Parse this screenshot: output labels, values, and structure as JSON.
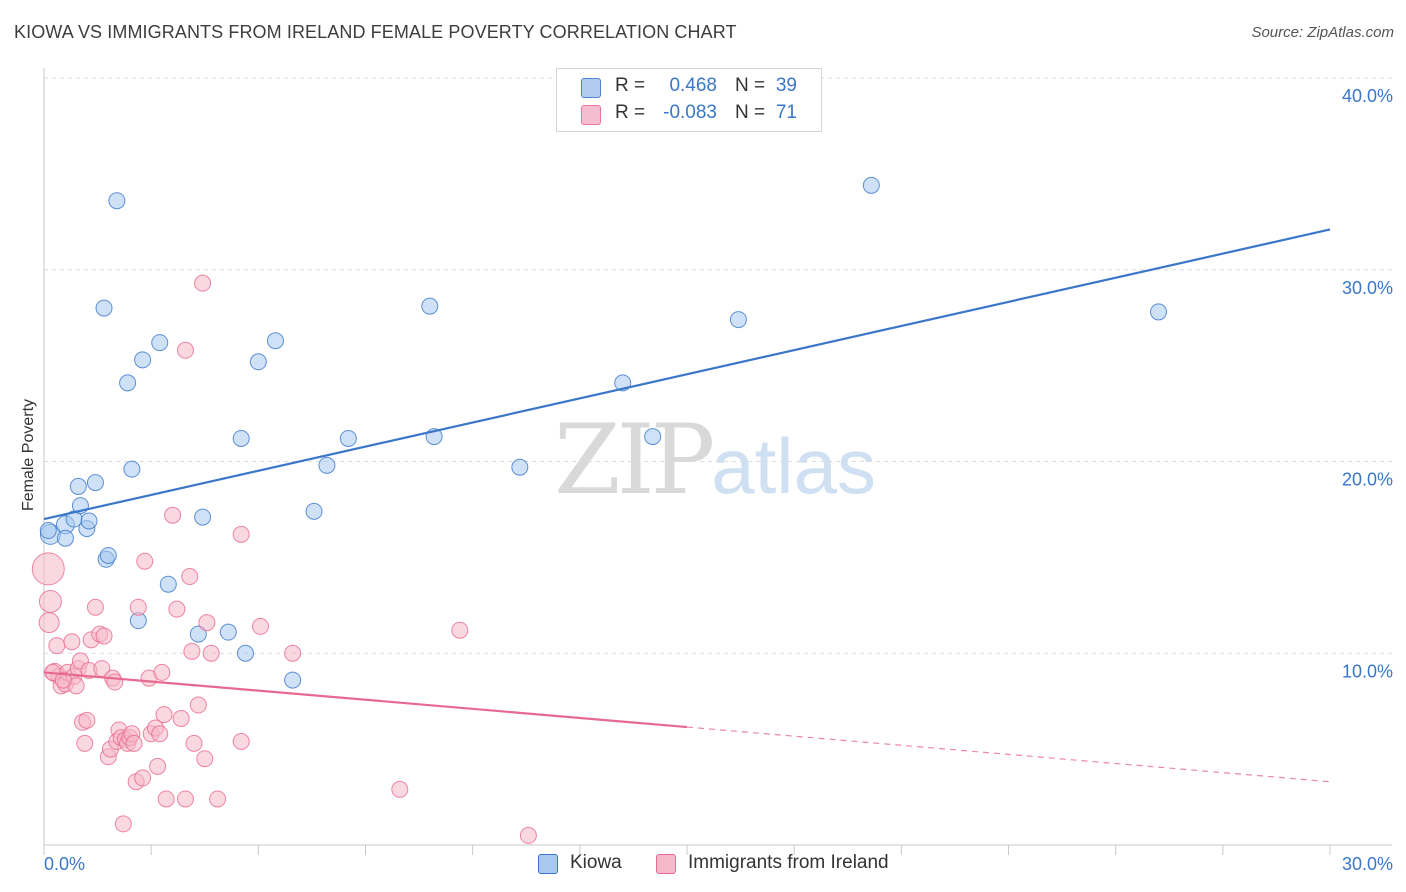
{
  "title": "KIOWA VS IMMIGRANTS FROM IRELAND FEMALE POVERTY CORRELATION CHART",
  "source": "Source: ZipAtlas.com",
  "watermark": {
    "part1": "ZIP",
    "part2": "atlas"
  },
  "legend": {
    "rows": [
      {
        "r_label": "R =",
        "r_value": "0.468",
        "n_label": "N =",
        "n_value": "39",
        "color": "#a8c8f0"
      },
      {
        "r_label": "R =",
        "r_value": "-0.083",
        "n_label": "N =",
        "n_value": "71",
        "color": "#f5b8cb"
      }
    ]
  },
  "bottom_legend": [
    {
      "label": "Kiowa",
      "color": "#a8c8f0"
    },
    {
      "label": "Immigrants from Ireland",
      "color": "#f5b8cb"
    }
  ],
  "chart_data": {
    "type": "scatter",
    "title": "KIOWA VS IMMIGRANTS FROM IRELAND FEMALE POVERTY CORRELATION CHART",
    "xlabel": "",
    "ylabel": "Female Poverty",
    "xlim": [
      0,
      30
    ],
    "ylim": [
      0,
      40
    ],
    "x_tick_labels": [
      "0.0%",
      "30.0%"
    ],
    "y_ticks": [
      10,
      20,
      30,
      40
    ],
    "y_tick_labels": [
      "10.0%",
      "20.0%",
      "30.0%",
      "40.0%"
    ],
    "grid": true,
    "series": [
      {
        "name": "Kiowa",
        "color": "#3a77c9",
        "fill": "#a8c8f0",
        "r": 0.468,
        "n": 39,
        "trend": {
          "x": [
            0,
            30
          ],
          "y": [
            17.0,
            32.1
          ],
          "dashed_from": null
        },
        "points": [
          [
            0.15,
            16.2,
            10
          ],
          [
            0.5,
            16.7,
            9
          ],
          [
            0.5,
            16.0,
            8
          ],
          [
            0.7,
            17.0,
            8
          ],
          [
            0.8,
            18.7,
            8
          ],
          [
            0.85,
            17.7,
            8
          ],
          [
            1.0,
            16.5,
            8
          ],
          [
            1.05,
            16.9,
            8
          ],
          [
            1.2,
            18.9,
            8
          ],
          [
            1.45,
            14.9,
            8
          ],
          [
            1.5,
            15.1,
            8
          ],
          [
            1.4,
            28.0,
            8
          ],
          [
            1.7,
            33.6,
            8
          ],
          [
            1.95,
            24.1,
            8
          ],
          [
            2.05,
            19.6,
            8
          ],
          [
            2.2,
            11.7,
            8
          ],
          [
            2.3,
            25.3,
            8
          ],
          [
            2.7,
            26.2,
            8
          ],
          [
            2.9,
            13.6,
            8
          ],
          [
            3.6,
            11.0,
            8
          ],
          [
            3.7,
            17.1,
            8
          ],
          [
            4.3,
            11.1,
            8
          ],
          [
            4.6,
            21.2,
            8
          ],
          [
            4.7,
            10.0,
            8
          ],
          [
            5.0,
            25.2,
            8
          ],
          [
            5.4,
            26.3,
            8
          ],
          [
            5.8,
            8.6,
            8
          ],
          [
            6.3,
            17.4,
            8
          ],
          [
            6.6,
            19.8,
            8
          ],
          [
            7.1,
            21.2,
            8
          ],
          [
            9.0,
            28.1,
            8
          ],
          [
            9.1,
            21.3,
            8
          ],
          [
            11.1,
            19.7,
            8
          ],
          [
            13.5,
            24.1,
            8
          ],
          [
            14.2,
            21.3,
            8
          ],
          [
            16.2,
            27.4,
            8
          ],
          [
            19.3,
            34.4,
            8
          ],
          [
            26.0,
            27.8,
            8
          ],
          [
            0.1,
            16.4,
            8
          ]
        ]
      },
      {
        "name": "Immigrants from Ireland",
        "color": "#e8698f",
        "fill": "#f5b8cb",
        "r": -0.083,
        "n": 71,
        "trend": {
          "x": [
            0,
            30
          ],
          "y": [
            9.0,
            3.3
          ],
          "dashed_from": 15
        },
        "points": [
          [
            0.1,
            14.4,
            16
          ],
          [
            0.15,
            12.7,
            11
          ],
          [
            0.12,
            11.6,
            10
          ],
          [
            0.25,
            9.0,
            9
          ],
          [
            0.3,
            10.4,
            8
          ],
          [
            0.35,
            8.8,
            8
          ],
          [
            0.4,
            8.3,
            8
          ],
          [
            0.5,
            8.4,
            8
          ],
          [
            0.55,
            9.0,
            8
          ],
          [
            0.65,
            10.6,
            8
          ],
          [
            0.7,
            8.8,
            8
          ],
          [
            0.75,
            8.3,
            8
          ],
          [
            0.8,
            9.2,
            8
          ],
          [
            0.85,
            9.6,
            8
          ],
          [
            0.9,
            6.4,
            8
          ],
          [
            0.95,
            5.3,
            8
          ],
          [
            1.0,
            6.5,
            8
          ],
          [
            1.05,
            9.1,
            8
          ],
          [
            1.1,
            10.7,
            8
          ],
          [
            1.2,
            12.4,
            8
          ],
          [
            1.3,
            11.0,
            8
          ],
          [
            1.35,
            9.2,
            8
          ],
          [
            1.4,
            10.9,
            8
          ],
          [
            1.5,
            4.6,
            8
          ],
          [
            1.55,
            5.0,
            8
          ],
          [
            1.6,
            8.7,
            8
          ],
          [
            1.65,
            8.5,
            8
          ],
          [
            1.7,
            5.4,
            8
          ],
          [
            1.75,
            6.0,
            8
          ],
          [
            1.8,
            5.6,
            8
          ],
          [
            1.85,
            1.1,
            8
          ],
          [
            1.9,
            5.5,
            8
          ],
          [
            1.95,
            5.3,
            8
          ],
          [
            2.0,
            5.6,
            8
          ],
          [
            2.05,
            5.8,
            8
          ],
          [
            2.1,
            5.3,
            8
          ],
          [
            2.15,
            3.3,
            8
          ],
          [
            2.2,
            12.4,
            8
          ],
          [
            2.3,
            3.5,
            8
          ],
          [
            2.35,
            14.8,
            8
          ],
          [
            2.45,
            8.7,
            8
          ],
          [
            2.5,
            5.8,
            8
          ],
          [
            2.6,
            6.1,
            8
          ],
          [
            2.65,
            4.1,
            8
          ],
          [
            2.7,
            5.8,
            8
          ],
          [
            2.75,
            9.0,
            8
          ],
          [
            2.8,
            6.8,
            8
          ],
          [
            2.85,
            2.4,
            8
          ],
          [
            3.0,
            17.2,
            8
          ],
          [
            3.1,
            12.3,
            8
          ],
          [
            3.2,
            6.6,
            8
          ],
          [
            3.3,
            2.4,
            8
          ],
          [
            3.3,
            25.8,
            8
          ],
          [
            3.4,
            14.0,
            8
          ],
          [
            3.45,
            10.1,
            8
          ],
          [
            3.5,
            5.3,
            8
          ],
          [
            3.6,
            7.3,
            8
          ],
          [
            3.7,
            29.3,
            8
          ],
          [
            3.75,
            4.5,
            8
          ],
          [
            3.8,
            11.6,
            8
          ],
          [
            3.9,
            10.0,
            8
          ],
          [
            4.05,
            2.4,
            8
          ],
          [
            4.6,
            5.4,
            8
          ],
          [
            4.6,
            16.2,
            8
          ],
          [
            5.05,
            11.4,
            8
          ],
          [
            5.8,
            10.0,
            8
          ],
          [
            8.3,
            2.9,
            8
          ],
          [
            9.7,
            11.2,
            8
          ],
          [
            11.3,
            0.5,
            8
          ],
          [
            0.2,
            9.0,
            8
          ],
          [
            0.45,
            8.6,
            8
          ]
        ]
      }
    ]
  }
}
